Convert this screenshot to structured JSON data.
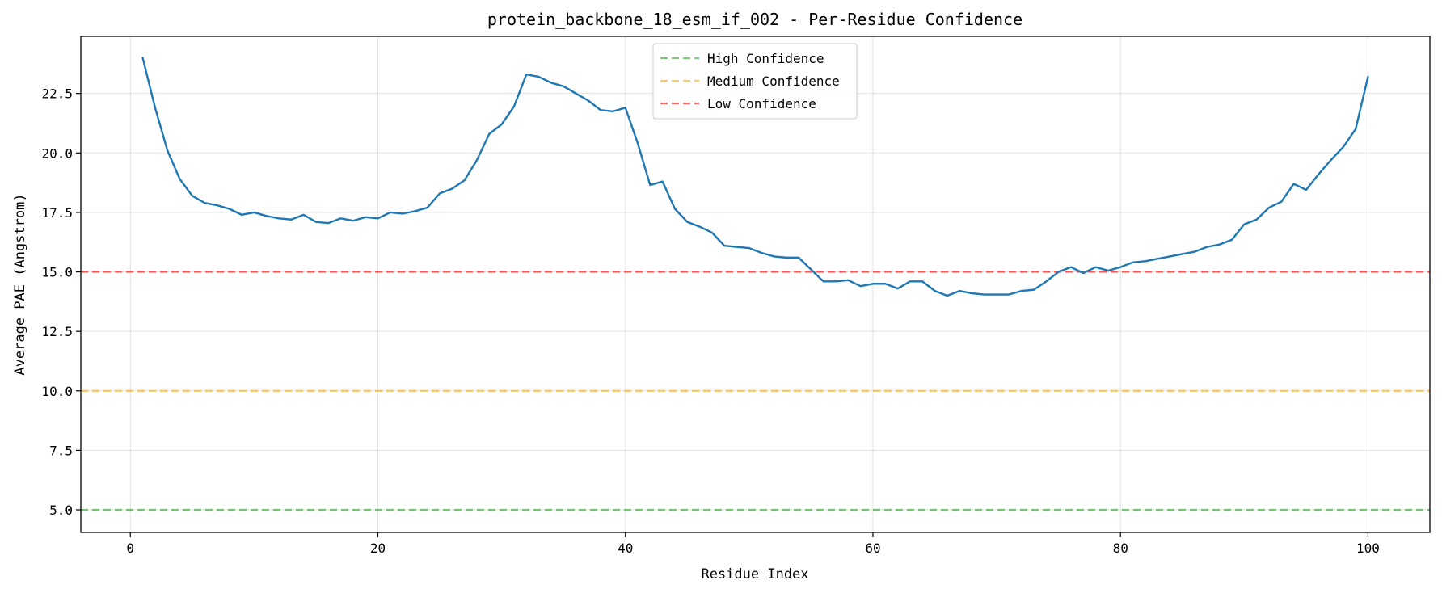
{
  "chart_data": {
    "type": "line",
    "title": "protein_backbone_18_esm_if_002 - Per-Residue Confidence",
    "xlabel": "Residue Index",
    "ylabel": "Average PAE (Angstrom)",
    "xlim": [
      -4.0,
      105.0
    ],
    "ylim": [
      4.05,
      24.9
    ],
    "x_ticks": [
      0,
      20,
      40,
      60,
      80,
      100
    ],
    "y_ticks": [
      5.0,
      7.5,
      10.0,
      12.5,
      15.0,
      17.5,
      20.0,
      22.5
    ],
    "x_tick_labels": [
      "0",
      "20",
      "40",
      "60",
      "80",
      "100"
    ],
    "y_tick_labels": [
      "5.0",
      "7.5",
      "10.0",
      "12.5",
      "15.0",
      "17.5",
      "20.0",
      "22.5"
    ],
    "grid": true,
    "legend_position": "top-center",
    "series": [
      {
        "color": "#1f77b4",
        "x": [
          1,
          2,
          3,
          4,
          5,
          6,
          7,
          8,
          9,
          10,
          11,
          12,
          13,
          14,
          15,
          16,
          17,
          18,
          19,
          20,
          21,
          22,
          23,
          24,
          25,
          26,
          27,
          28,
          29,
          30,
          31,
          32,
          33,
          34,
          35,
          36,
          37,
          38,
          39,
          40,
          41,
          42,
          43,
          44,
          45,
          46,
          47,
          48,
          49,
          50,
          51,
          52,
          53,
          54,
          55,
          56,
          57,
          58,
          59,
          60,
          61,
          62,
          63,
          64,
          65,
          66,
          67,
          68,
          69,
          70,
          71,
          72,
          73,
          74,
          75,
          76,
          77,
          78,
          79,
          80,
          81,
          82,
          83,
          84,
          85,
          86,
          87,
          88,
          89,
          90,
          91,
          92,
          93,
          94,
          95,
          96,
          97,
          98,
          99,
          100
        ],
        "values": [
          24.0,
          21.9,
          20.1,
          18.9,
          18.2,
          17.9,
          17.8,
          17.65,
          17.4,
          17.5,
          17.35,
          17.25,
          17.2,
          17.4,
          17.1,
          17.05,
          17.25,
          17.15,
          17.3,
          17.25,
          17.5,
          17.45,
          17.55,
          17.7,
          18.3,
          18.5,
          18.85,
          19.7,
          20.8,
          21.2,
          21.95,
          23.3,
          23.2,
          22.95,
          22.8,
          22.5,
          22.2,
          21.8,
          21.75,
          21.9,
          20.4,
          18.65,
          18.8,
          17.65,
          17.1,
          16.9,
          16.65,
          16.1,
          16.05,
          16.0,
          15.8,
          15.65,
          15.6,
          15.6,
          15.1,
          14.6,
          14.6,
          14.65,
          14.4,
          14.5,
          14.5,
          14.3,
          14.6,
          14.6,
          14.2,
          14.0,
          14.2,
          14.1,
          14.05,
          14.05,
          14.05,
          14.2,
          14.25,
          14.6,
          15.0,
          15.2,
          14.95,
          15.2,
          15.05,
          15.2,
          15.4,
          15.45,
          15.55,
          15.65,
          15.75,
          15.85,
          16.05,
          16.15,
          16.35,
          17.0,
          17.2,
          17.7,
          17.95,
          18.7,
          18.45,
          19.1,
          19.7,
          20.25,
          21.0,
          23.2
        ]
      }
    ],
    "reference_lines": [
      {
        "name": "High Confidence",
        "y": 5.0,
        "color": "#2ca02c",
        "dash": true
      },
      {
        "name": "Medium Confidence",
        "y": 10.0,
        "color": "#ffa500",
        "dash": true
      },
      {
        "name": "Low Confidence",
        "y": 15.0,
        "color": "#ff0000",
        "dash": true
      }
    ]
  }
}
